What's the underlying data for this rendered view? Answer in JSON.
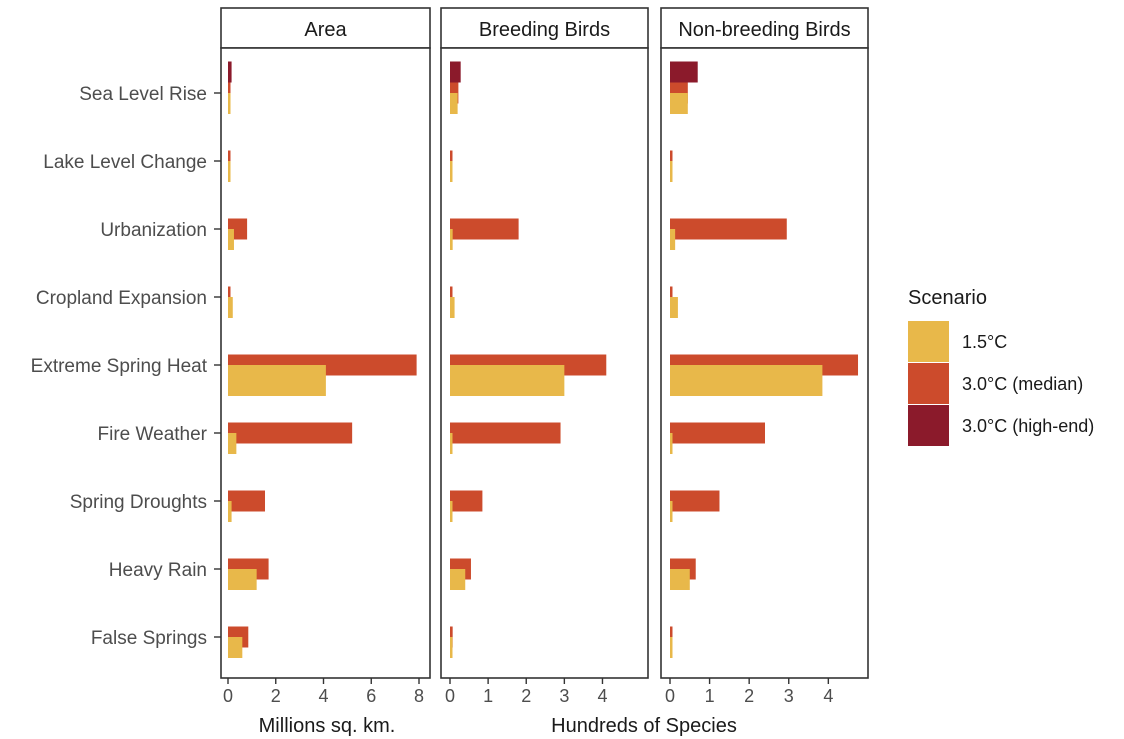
{
  "chart_data": {
    "type": "bar",
    "orientation": "horizontal",
    "categories": [
      "Sea Level Rise",
      "Lake Level Change",
      "Urbanization",
      "Cropland Expansion",
      "Extreme Spring Heat",
      "Fire Weather",
      "Spring Droughts",
      "Heavy Rain",
      "False Springs"
    ],
    "legend": {
      "title": "Scenario",
      "position": "right",
      "entries": [
        {
          "name": "1.5°C",
          "color": "#e8b84a"
        },
        {
          "name": "3.0°C (median)",
          "color": "#cc4b2c"
        },
        {
          "name": "3.0°C (high-end)",
          "color": "#8b1a2b"
        }
      ]
    },
    "grid": false,
    "panels": [
      {
        "title": "Area",
        "xlim": [
          0,
          8
        ],
        "xticks": [
          "0",
          "2",
          "4",
          "6",
          "8"
        ],
        "tick_values": [
          0,
          2,
          4,
          6,
          8
        ],
        "series": [
          {
            "name": "3.0°C (high-end)",
            "values": [
              0.15,
              null,
              null,
              null,
              null,
              null,
              null,
              null,
              null
            ]
          },
          {
            "name": "3.0°C (median)",
            "values": [
              0.1,
              0.05,
              0.8,
              0.1,
              7.9,
              5.2,
              1.55,
              1.7,
              0.85
            ]
          },
          {
            "name": "1.5°C",
            "values": [
              0.05,
              0.05,
              0.25,
              0.2,
              4.1,
              0.35,
              0.15,
              1.2,
              0.6
            ]
          }
        ]
      },
      {
        "title": "Breeding Birds",
        "xlim": [
          0,
          4.25
        ],
        "xticks": [
          "0",
          "1",
          "2",
          "3",
          "4"
        ],
        "tick_values": [
          0,
          1,
          2,
          3,
          4
        ],
        "series": [
          {
            "name": "3.0°C (high-end)",
            "values": [
              0.28,
              null,
              null,
              null,
              null,
              null,
              null,
              null,
              null
            ]
          },
          {
            "name": "3.0°C (median)",
            "values": [
              0.22,
              0.04,
              1.8,
              0.03,
              4.1,
              2.9,
              0.85,
              0.55,
              0.07
            ]
          },
          {
            "name": "1.5°C",
            "values": [
              0.2,
              0.03,
              0.07,
              0.12,
              3.0,
              0.03,
              0.02,
              0.4,
              0.05
            ]
          }
        ]
      },
      {
        "title": "Non-breeding Birds",
        "xlim": [
          0,
          4.8
        ],
        "xticks": [
          "0",
          "1",
          "2",
          "3",
          "4"
        ],
        "tick_values": [
          0,
          1,
          2,
          3,
          4
        ],
        "series": [
          {
            "name": "3.0°C (high-end)",
            "values": [
              0.7,
              null,
              null,
              null,
              null,
              null,
              null,
              null,
              null
            ]
          },
          {
            "name": "3.0°C (median)",
            "values": [
              0.45,
              0.03,
              2.95,
              0.05,
              4.75,
              2.4,
              1.25,
              0.65,
              0.05
            ]
          },
          {
            "name": "1.5°C",
            "values": [
              0.45,
              0.03,
              0.13,
              0.2,
              3.85,
              0.03,
              0.03,
              0.5,
              0.03
            ]
          }
        ]
      }
    ],
    "xlabels": [
      "Millions sq. km.",
      "Hundreds of Species"
    ]
  }
}
